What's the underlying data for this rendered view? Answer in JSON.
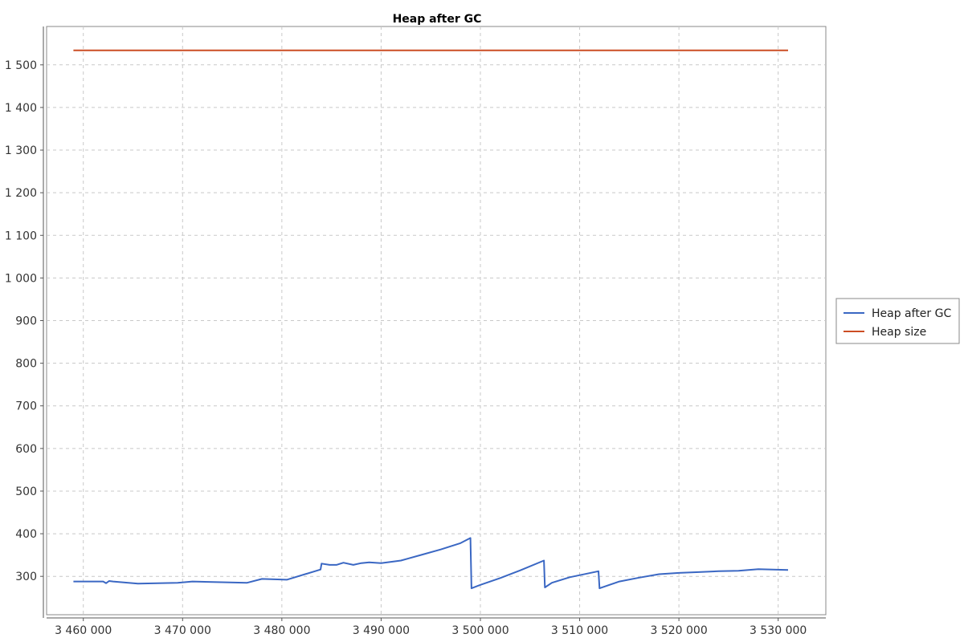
{
  "chart_data": {
    "type": "line",
    "title": "Heap after GC",
    "xlabel": "",
    "ylabel": "",
    "xlim": [
      3456300,
      3534800
    ],
    "ylim": [
      210,
      1590
    ],
    "x_ticks": [
      3460000,
      3470000,
      3480000,
      3490000,
      3500000,
      3510000,
      3520000,
      3530000
    ],
    "x_tick_labels": [
      "3 460 000",
      "3 470 000",
      "3 480 000",
      "3 490 000",
      "3 500 000",
      "3 510 000",
      "3 520 000",
      "3 530 000"
    ],
    "y_ticks": [
      300,
      400,
      500,
      600,
      700,
      800,
      900,
      1000,
      1100,
      1200,
      1300,
      1400,
      1500
    ],
    "y_tick_labels": [
      "300",
      "400",
      "500",
      "600",
      "700",
      "800",
      "900",
      "1 000",
      "1 100",
      "1 200",
      "1 300",
      "1 400",
      "1 500"
    ],
    "grid": true,
    "legend_position": "right",
    "series": [
      {
        "name": "Heap after GC",
        "color": "#3a67c3",
        "x": [
          3459000,
          3462000,
          3462300,
          3462600,
          3463000,
          3465500,
          3469500,
          3471000,
          3476500,
          3478000,
          3480500,
          3483900,
          3484000,
          3484800,
          3485500,
          3486200,
          3487200,
          3488000,
          3488800,
          3490000,
          3492000,
          3494000,
          3496000,
          3498000,
          3499000,
          3499100,
          3500000,
          3502000,
          3504000,
          3506400,
          3506500,
          3507200,
          3509000,
          3511900,
          3512000,
          3514000,
          3516000,
          3518000,
          3520000,
          3522000,
          3524000,
          3526000,
          3528000,
          3531000
        ],
        "y": [
          288,
          288,
          284,
          289,
          288,
          283,
          285,
          288,
          285,
          294,
          292,
          316,
          330,
          327,
          327,
          332,
          327,
          331,
          333,
          331,
          337,
          350,
          363,
          378,
          390,
          272,
          280,
          296,
          314,
          337,
          274,
          285,
          298,
          312,
          272,
          288,
          297,
          305,
          308,
          310,
          312,
          313,
          317,
          315
        ]
      },
      {
        "name": "Heap size",
        "color": "#cc4d24",
        "x": [
          3459000,
          3531000
        ],
        "y": [
          1534,
          1534
        ]
      }
    ]
  }
}
